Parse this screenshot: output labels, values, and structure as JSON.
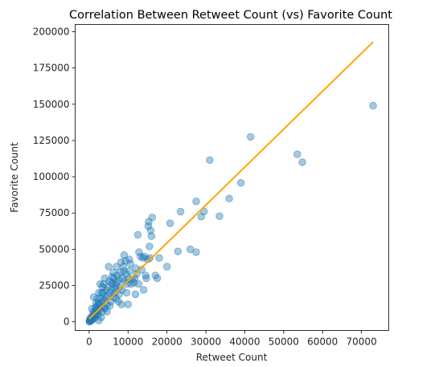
{
  "chart_data": {
    "type": "scatter",
    "title": "Correlation Between Retweet Count (vs) Favorite Count",
    "xlabel": "Retweet Count",
    "ylabel": "Favorite Count",
    "xlim": [
      -3600,
      77000
    ],
    "ylim": [
      -6000,
      205000
    ],
    "grid": false,
    "x_ticks": [
      0,
      10000,
      20000,
      30000,
      40000,
      50000,
      60000,
      70000
    ],
    "y_ticks": [
      0,
      25000,
      50000,
      75000,
      100000,
      125000,
      150000,
      175000,
      200000
    ],
    "marker_color": "#1f77b4",
    "marker_alpha": 0.4,
    "line_color": "#ffa500",
    "fit_line": {
      "x": [
        0,
        73000
      ],
      "y": [
        2000,
        193000
      ]
    },
    "points": [
      [
        73000,
        149000
      ],
      [
        54800,
        110000
      ],
      [
        53500,
        115500
      ],
      [
        41500,
        127500
      ],
      [
        39000,
        95800
      ],
      [
        36000,
        85000
      ],
      [
        33500,
        72800
      ],
      [
        31000,
        111500
      ],
      [
        29500,
        76000
      ],
      [
        28800,
        72500
      ],
      [
        27500,
        83000
      ],
      [
        27500,
        48000
      ],
      [
        26000,
        50000
      ],
      [
        23500,
        76000
      ],
      [
        22800,
        48500
      ],
      [
        20800,
        68000
      ],
      [
        20000,
        38000
      ],
      [
        18000,
        44000
      ],
      [
        17500,
        30000
      ],
      [
        17000,
        32000
      ],
      [
        16200,
        72000
      ],
      [
        16000,
        59000
      ],
      [
        15800,
        63000
      ],
      [
        15600,
        44000
      ],
      [
        15500,
        52000
      ],
      [
        15300,
        69000
      ],
      [
        15200,
        66000
      ],
      [
        15000,
        43000
      ],
      [
        14700,
        30000
      ],
      [
        14500,
        32000
      ],
      [
        14200,
        45000
      ],
      [
        14000,
        22000
      ],
      [
        13500,
        36000
      ],
      [
        13200,
        45000
      ],
      [
        12800,
        48000
      ],
      [
        12500,
        60000
      ],
      [
        12200,
        33000
      ],
      [
        12000,
        37000
      ],
      [
        11700,
        30000
      ],
      [
        11500,
        27000
      ],
      [
        11000,
        29000
      ],
      [
        10600,
        40000
      ],
      [
        10300,
        43000
      ],
      [
        10200,
        30000
      ],
      [
        10000,
        12000
      ],
      [
        9800,
        26000
      ],
      [
        9500,
        33000
      ],
      [
        9300,
        42000
      ],
      [
        9000,
        46000
      ],
      [
        8800,
        38000
      ],
      [
        8600,
        30000
      ],
      [
        8400,
        22000
      ],
      [
        8200,
        41000
      ],
      [
        8000,
        34000
      ],
      [
        7800,
        24000
      ],
      [
        7600,
        29000
      ],
      [
        7500,
        14000
      ],
      [
        7200,
        32000
      ],
      [
        7000,
        38000
      ],
      [
        6800,
        25000
      ],
      [
        6600,
        20000
      ],
      [
        6400,
        30000
      ],
      [
        6200,
        17000
      ],
      [
        6000,
        26000
      ],
      [
        5800,
        22000
      ],
      [
        5600,
        14000
      ],
      [
        5400,
        20000
      ],
      [
        5200,
        28000
      ],
      [
        5000,
        38000
      ],
      [
        4800,
        18000
      ],
      [
        4700,
        24000
      ],
      [
        4500,
        12000
      ],
      [
        4300,
        22000
      ],
      [
        4200,
        17000
      ],
      [
        4000,
        30000
      ],
      [
        3900,
        10000
      ],
      [
        3700,
        26000
      ],
      [
        3600,
        20000
      ],
      [
        3500,
        14000
      ],
      [
        3300,
        7000
      ],
      [
        3200,
        20000
      ],
      [
        3000,
        10000
      ],
      [
        2900,
        16000
      ],
      [
        2800,
        26000
      ],
      [
        2600,
        8000
      ],
      [
        2500,
        20000
      ],
      [
        2400,
        13000
      ],
      [
        2300,
        5000
      ],
      [
        2200,
        11000
      ],
      [
        2100,
        16000
      ],
      [
        2000,
        8000
      ],
      [
        1900,
        6000
      ],
      [
        1800,
        13000
      ],
      [
        1700,
        4000
      ],
      [
        1600,
        10000
      ],
      [
        1500,
        7000
      ],
      [
        1400,
        2500
      ],
      [
        1300,
        5000
      ],
      [
        1200,
        17000
      ],
      [
        1100,
        3000
      ],
      [
        1000,
        6500
      ],
      [
        900,
        1500
      ],
      [
        800,
        4000
      ],
      [
        700,
        9000
      ],
      [
        600,
        1000
      ],
      [
        500,
        3000
      ],
      [
        400,
        1500
      ],
      [
        300,
        500
      ],
      [
        200,
        2000
      ],
      [
        150,
        800
      ],
      [
        100,
        300
      ],
      [
        50,
        100
      ],
      [
        6200,
        34000
      ],
      [
        7100,
        27000
      ],
      [
        5900,
        31000
      ],
      [
        8900,
        35000
      ],
      [
        9600,
        20000
      ],
      [
        10800,
        26000
      ],
      [
        11900,
        19000
      ],
      [
        3800,
        15000
      ],
      [
        4600,
        7000
      ],
      [
        5300,
        11000
      ],
      [
        6900,
        16000
      ],
      [
        7700,
        19000
      ],
      [
        2700,
        12000
      ],
      [
        3400,
        24000
      ],
      [
        4100,
        9000
      ],
      [
        5700,
        27000
      ],
      [
        8300,
        12000
      ],
      [
        9100,
        28000
      ],
      [
        10400,
        35000
      ],
      [
        6500,
        23000
      ],
      [
        2500,
        1000
      ],
      [
        3100,
        3000
      ],
      [
        1800,
        9000
      ],
      [
        12700,
        26000
      ],
      [
        13800,
        44000
      ]
    ]
  }
}
